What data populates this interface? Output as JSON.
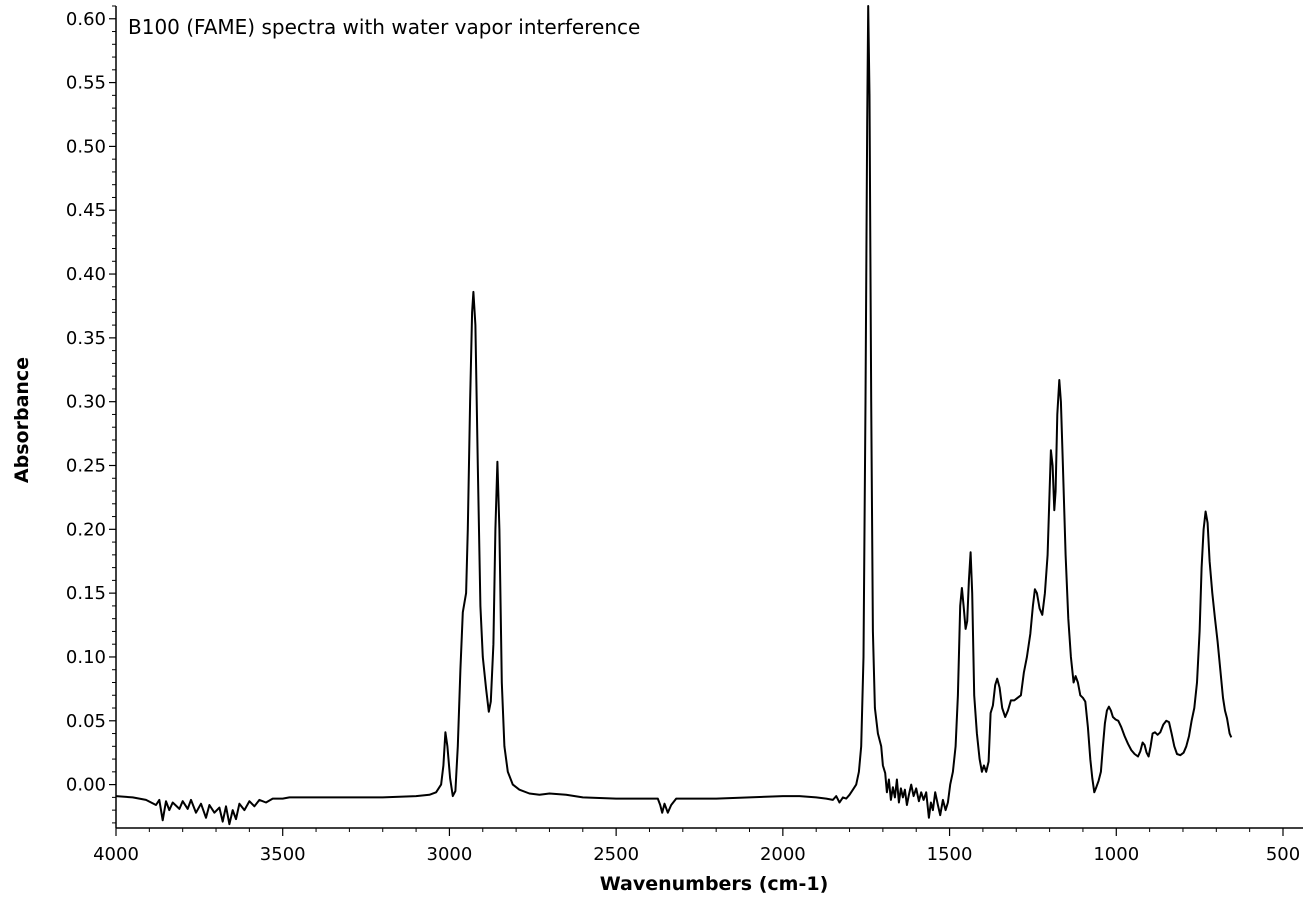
{
  "chart_data": {
    "type": "line",
    "title": "B100 (FAME) spectra with water vapor interference",
    "xlabel": "Wavenumbers (cm-1)",
    "ylabel": "Absorbance",
    "xlim": [
      4000,
      440
    ],
    "ylim": [
      -0.034,
      0.61
    ],
    "x_reversed": true,
    "grid": false,
    "xticks": [
      4000,
      3500,
      3000,
      2500,
      2000,
      1500,
      1000,
      500
    ],
    "xtick_labels": [
      "4000",
      "3500",
      "3000",
      "2500",
      "2000",
      "1500",
      "1000",
      "500"
    ],
    "yticks": [
      0.0,
      0.05,
      0.1,
      0.15,
      0.2,
      0.25,
      0.3,
      0.35,
      0.4,
      0.45,
      0.5,
      0.55,
      0.6
    ],
    "ytick_labels": [
      "0.00",
      "0.05",
      "0.10",
      "0.15",
      "0.20",
      "0.25",
      "0.30",
      "0.35",
      "0.40",
      "0.45",
      "0.50",
      "0.55",
      "0.60"
    ],
    "series": [
      {
        "points": [
          [
            4000,
            -0.009
          ],
          [
            3950,
            -0.01
          ],
          [
            3910,
            -0.012
          ],
          [
            3880,
            -0.016
          ],
          [
            3870,
            -0.012
          ],
          [
            3860,
            -0.028
          ],
          [
            3850,
            -0.013
          ],
          [
            3840,
            -0.02
          ],
          [
            3830,
            -0.014
          ],
          [
            3810,
            -0.019
          ],
          [
            3800,
            -0.013
          ],
          [
            3785,
            -0.019
          ],
          [
            3775,
            -0.012
          ],
          [
            3760,
            -0.022
          ],
          [
            3745,
            -0.015
          ],
          [
            3730,
            -0.026
          ],
          [
            3720,
            -0.016
          ],
          [
            3705,
            -0.022
          ],
          [
            3690,
            -0.018
          ],
          [
            3680,
            -0.029
          ],
          [
            3670,
            -0.017
          ],
          [
            3660,
            -0.031
          ],
          [
            3650,
            -0.02
          ],
          [
            3640,
            -0.027
          ],
          [
            3630,
            -0.015
          ],
          [
            3615,
            -0.02
          ],
          [
            3600,
            -0.013
          ],
          [
            3585,
            -0.017
          ],
          [
            3570,
            -0.012
          ],
          [
            3550,
            -0.014
          ],
          [
            3530,
            -0.011
          ],
          [
            3500,
            -0.011
          ],
          [
            3480,
            -0.01
          ],
          [
            3400,
            -0.01
          ],
          [
            3300,
            -0.01
          ],
          [
            3200,
            -0.01
          ],
          [
            3100,
            -0.009
          ],
          [
            3060,
            -0.008
          ],
          [
            3040,
            -0.006
          ],
          [
            3025,
            0.0
          ],
          [
            3018,
            0.015
          ],
          [
            3012,
            0.041
          ],
          [
            3006,
            0.03
          ],
          [
            2998,
            0.005
          ],
          [
            2990,
            -0.009
          ],
          [
            2982,
            -0.005
          ],
          [
            2975,
            0.03
          ],
          [
            2967,
            0.09
          ],
          [
            2960,
            0.135
          ],
          [
            2950,
            0.15
          ],
          [
            2945,
            0.2
          ],
          [
            2938,
            0.3
          ],
          [
            2932,
            0.37
          ],
          [
            2928,
            0.386
          ],
          [
            2922,
            0.36
          ],
          [
            2915,
            0.25
          ],
          [
            2907,
            0.14
          ],
          [
            2900,
            0.1
          ],
          [
            2890,
            0.075
          ],
          [
            2882,
            0.057
          ],
          [
            2876,
            0.065
          ],
          [
            2868,
            0.11
          ],
          [
            2862,
            0.2
          ],
          [
            2856,
            0.253
          ],
          [
            2850,
            0.2
          ],
          [
            2843,
            0.08
          ],
          [
            2835,
            0.03
          ],
          [
            2825,
            0.01
          ],
          [
            2810,
            0.0
          ],
          [
            2790,
            -0.004
          ],
          [
            2760,
            -0.007
          ],
          [
            2730,
            -0.008
          ],
          [
            2700,
            -0.007
          ],
          [
            2650,
            -0.008
          ],
          [
            2600,
            -0.01
          ],
          [
            2500,
            -0.011
          ],
          [
            2400,
            -0.011
          ],
          [
            2375,
            -0.011
          ],
          [
            2368,
            -0.016
          ],
          [
            2362,
            -0.022
          ],
          [
            2355,
            -0.015
          ],
          [
            2345,
            -0.022
          ],
          [
            2335,
            -0.016
          ],
          [
            2320,
            -0.011
          ],
          [
            2300,
            -0.011
          ],
          [
            2200,
            -0.011
          ],
          [
            2100,
            -0.01
          ],
          [
            2000,
            -0.009
          ],
          [
            1950,
            -0.009
          ],
          [
            1900,
            -0.01
          ],
          [
            1870,
            -0.011
          ],
          [
            1850,
            -0.012
          ],
          [
            1840,
            -0.009
          ],
          [
            1830,
            -0.014
          ],
          [
            1820,
            -0.01
          ],
          [
            1810,
            -0.011
          ],
          [
            1800,
            -0.008
          ],
          [
            1790,
            -0.004
          ],
          [
            1780,
            0.0
          ],
          [
            1772,
            0.01
          ],
          [
            1765,
            0.03
          ],
          [
            1758,
            0.1
          ],
          [
            1752,
            0.3
          ],
          [
            1747,
            0.52
          ],
          [
            1744,
            0.61
          ],
          [
            1740,
            0.54
          ],
          [
            1735,
            0.3
          ],
          [
            1730,
            0.12
          ],
          [
            1724,
            0.06
          ],
          [
            1715,
            0.04
          ],
          [
            1705,
            0.03
          ],
          [
            1700,
            0.015
          ],
          [
            1693,
            0.009
          ],
          [
            1688,
            -0.006
          ],
          [
            1682,
            0.004
          ],
          [
            1676,
            -0.012
          ],
          [
            1670,
            -0.002
          ],
          [
            1664,
            -0.01
          ],
          [
            1658,
            0.004
          ],
          [
            1652,
            -0.014
          ],
          [
            1646,
            -0.003
          ],
          [
            1640,
            -0.01
          ],
          [
            1634,
            -0.004
          ],
          [
            1628,
            -0.016
          ],
          [
            1622,
            -0.008
          ],
          [
            1615,
            0.0
          ],
          [
            1608,
            -0.009
          ],
          [
            1600,
            -0.003
          ],
          [
            1592,
            -0.013
          ],
          [
            1585,
            -0.006
          ],
          [
            1578,
            -0.012
          ],
          [
            1570,
            -0.006
          ],
          [
            1562,
            -0.026
          ],
          [
            1556,
            -0.014
          ],
          [
            1550,
            -0.02
          ],
          [
            1543,
            -0.006
          ],
          [
            1535,
            -0.016
          ],
          [
            1528,
            -0.024
          ],
          [
            1520,
            -0.012
          ],
          [
            1512,
            -0.02
          ],
          [
            1505,
            -0.014
          ],
          [
            1498,
            0.0
          ],
          [
            1490,
            0.01
          ],
          [
            1482,
            0.03
          ],
          [
            1475,
            0.07
          ],
          [
            1468,
            0.14
          ],
          [
            1463,
            0.154
          ],
          [
            1458,
            0.14
          ],
          [
            1452,
            0.122
          ],
          [
            1447,
            0.128
          ],
          [
            1442,
            0.16
          ],
          [
            1437,
            0.182
          ],
          [
            1432,
            0.15
          ],
          [
            1426,
            0.07
          ],
          [
            1418,
            0.04
          ],
          [
            1410,
            0.02
          ],
          [
            1403,
            0.01
          ],
          [
            1397,
            0.015
          ],
          [
            1390,
            0.01
          ],
          [
            1383,
            0.018
          ],
          [
            1377,
            0.056
          ],
          [
            1370,
            0.062
          ],
          [
            1363,
            0.078
          ],
          [
            1357,
            0.083
          ],
          [
            1350,
            0.076
          ],
          [
            1342,
            0.06
          ],
          [
            1333,
            0.053
          ],
          [
            1325,
            0.058
          ],
          [
            1316,
            0.066
          ],
          [
            1306,
            0.066
          ],
          [
            1296,
            0.068
          ],
          [
            1286,
            0.07
          ],
          [
            1277,
            0.088
          ],
          [
            1268,
            0.1
          ],
          [
            1258,
            0.118
          ],
          [
            1250,
            0.14
          ],
          [
            1244,
            0.153
          ],
          [
            1238,
            0.15
          ],
          [
            1230,
            0.138
          ],
          [
            1222,
            0.133
          ],
          [
            1214,
            0.15
          ],
          [
            1206,
            0.18
          ],
          [
            1200,
            0.23
          ],
          [
            1196,
            0.262
          ],
          [
            1191,
            0.25
          ],
          [
            1186,
            0.215
          ],
          [
            1182,
            0.23
          ],
          [
            1177,
            0.29
          ],
          [
            1171,
            0.317
          ],
          [
            1166,
            0.3
          ],
          [
            1160,
            0.25
          ],
          [
            1152,
            0.18
          ],
          [
            1144,
            0.13
          ],
          [
            1136,
            0.1
          ],
          [
            1128,
            0.08
          ],
          [
            1122,
            0.085
          ],
          [
            1115,
            0.08
          ],
          [
            1108,
            0.07
          ],
          [
            1100,
            0.068
          ],
          [
            1093,
            0.065
          ],
          [
            1085,
            0.045
          ],
          [
            1078,
            0.02
          ],
          [
            1072,
            0.005
          ],
          [
            1066,
            -0.006
          ],
          [
            1060,
            -0.002
          ],
          [
            1053,
            0.003
          ],
          [
            1046,
            0.01
          ],
          [
            1040,
            0.03
          ],
          [
            1034,
            0.048
          ],
          [
            1028,
            0.058
          ],
          [
            1022,
            0.061
          ],
          [
            1016,
            0.058
          ],
          [
            1010,
            0.053
          ],
          [
            1002,
            0.051
          ],
          [
            994,
            0.05
          ],
          [
            985,
            0.045
          ],
          [
            975,
            0.038
          ],
          [
            965,
            0.032
          ],
          [
            955,
            0.027
          ],
          [
            945,
            0.024
          ],
          [
            935,
            0.022
          ],
          [
            928,
            0.026
          ],
          [
            921,
            0.033
          ],
          [
            915,
            0.031
          ],
          [
            909,
            0.025
          ],
          [
            903,
            0.022
          ],
          [
            897,
            0.03
          ],
          [
            891,
            0.04
          ],
          [
            884,
            0.041
          ],
          [
            876,
            0.039
          ],
          [
            868,
            0.041
          ],
          [
            859,
            0.047
          ],
          [
            850,
            0.05
          ],
          [
            842,
            0.049
          ],
          [
            834,
            0.04
          ],
          [
            826,
            0.03
          ],
          [
            818,
            0.024
          ],
          [
            808,
            0.023
          ],
          [
            798,
            0.025
          ],
          [
            790,
            0.03
          ],
          [
            782,
            0.038
          ],
          [
            774,
            0.05
          ],
          [
            766,
            0.06
          ],
          [
            758,
            0.08
          ],
          [
            750,
            0.12
          ],
          [
            744,
            0.17
          ],
          [
            738,
            0.2
          ],
          [
            732,
            0.214
          ],
          [
            726,
            0.205
          ],
          [
            720,
            0.175
          ],
          [
            712,
            0.15
          ],
          [
            704,
            0.13
          ],
          [
            696,
            0.112
          ],
          [
            688,
            0.09
          ],
          [
            680,
            0.068
          ],
          [
            674,
            0.058
          ],
          [
            668,
            0.052
          ],
          [
            660,
            0.04
          ],
          [
            655,
            0.037
          ]
        ]
      }
    ]
  }
}
